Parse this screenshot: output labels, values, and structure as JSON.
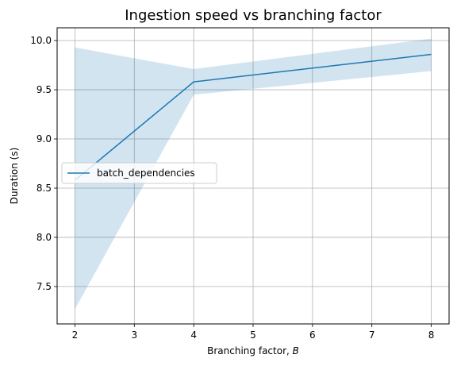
{
  "chart_data": {
    "type": "line",
    "title": "Ingestion speed vs branching factor",
    "xlabel": "Branching factor, ",
    "xlabel_var": "B",
    "ylabel": "Duration (s)",
    "xlim": [
      1.7,
      8.3
    ],
    "ylim": [
      7.12,
      10.13
    ],
    "x_ticks": [
      2,
      3,
      4,
      5,
      6,
      7,
      8
    ],
    "y_ticks": [
      7.5,
      8.0,
      8.5,
      9.0,
      9.5,
      10.0
    ],
    "x_tick_labels": [
      "2",
      "3",
      "4",
      "5",
      "6",
      "7",
      "8"
    ],
    "y_tick_labels": [
      "7.5",
      "8.0",
      "8.5",
      "9.0",
      "9.5",
      "10.0"
    ],
    "grid": true,
    "legend_position": "center-left",
    "series": [
      {
        "name": "batch_dependencies",
        "color": "#1f77b4",
        "band_color": "#1f77b4",
        "x": [
          2,
          4,
          8
        ],
        "y": [
          8.58,
          9.58,
          9.86
        ],
        "y_lower": [
          7.27,
          9.45,
          9.69
        ],
        "y_upper": [
          9.93,
          9.71,
          10.02
        ]
      }
    ]
  }
}
